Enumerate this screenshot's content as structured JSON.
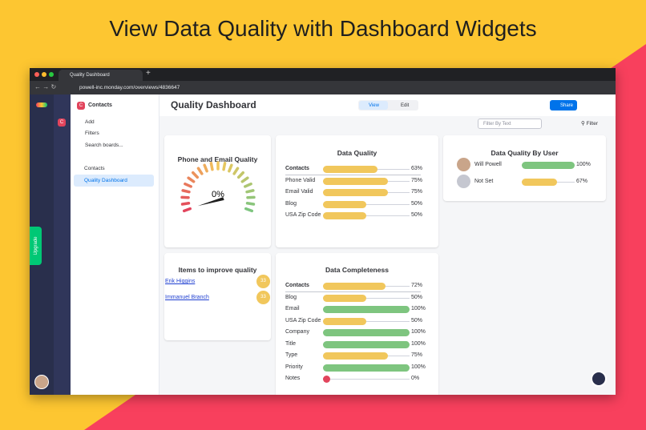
{
  "headline": "View Data Quality with Dashboard Widgets",
  "browser": {
    "tab": "Quality Dashboard",
    "url": "powell-inc.monday.com/overviews/4836647"
  },
  "sidebar": {
    "workspace": "Contacts",
    "workspace_icon": "C",
    "actions": [
      "Add",
      "Filters",
      "Search boards..."
    ],
    "items": [
      "Contacts",
      "Quality Dashboard"
    ],
    "upgrade": "Upgrade"
  },
  "header": {
    "title": "Quality Dashboard",
    "view": "View",
    "edit": "Edit",
    "share": "Share",
    "filter_placeholder": "Filter By Text",
    "filter": "Filter"
  },
  "widgets": {
    "gauge": {
      "title": "Phone and Email Quality",
      "value": 0,
      "value_label": "0%"
    },
    "data_quality": {
      "title": "Data Quality",
      "rows": [
        {
          "label": "Contacts",
          "value": 63,
          "value_label": "63%",
          "color": "#f1c75c"
        },
        {
          "label": "Phone Valid",
          "value": 75,
          "value_label": "75%",
          "color": "#f1c75c"
        },
        {
          "label": "Email Valid",
          "value": 75,
          "value_label": "75%",
          "color": "#f1c75c"
        },
        {
          "label": "Blog",
          "value": 50,
          "value_label": "50%",
          "color": "#f1c75c"
        },
        {
          "label": "USA Zip Code",
          "value": 50,
          "value_label": "50%",
          "color": "#f1c75c"
        }
      ]
    },
    "by_user": {
      "title": "Data Quality By User",
      "rows": [
        {
          "label": "Will Powell",
          "value": 100,
          "value_label": "100%",
          "color": "#7ec57f"
        },
        {
          "label": "Not Set",
          "value": 67,
          "value_label": "67%",
          "color": "#f1c75c"
        }
      ]
    },
    "items": {
      "title": "Items to improve quality",
      "rows": [
        {
          "label": "Erik Higgins",
          "value": 33
        },
        {
          "label": "Immanuel Branch",
          "value": 33
        }
      ]
    },
    "completeness": {
      "title": "Data Completeness",
      "rows": [
        {
          "label": "Contacts",
          "value": 72,
          "value_label": "72%",
          "color": "#f1c75c"
        },
        {
          "label": "Blog",
          "value": 50,
          "value_label": "50%",
          "color": "#f1c75c"
        },
        {
          "label": "Email",
          "value": 100,
          "value_label": "100%",
          "color": "#7ec57f"
        },
        {
          "label": "USA Zip Code",
          "value": 50,
          "value_label": "50%",
          "color": "#f1c75c"
        },
        {
          "label": "Company",
          "value": 100,
          "value_label": "100%",
          "color": "#7ec57f"
        },
        {
          "label": "Title",
          "value": 100,
          "value_label": "100%",
          "color": "#7ec57f"
        },
        {
          "label": "Type",
          "value": 75,
          "value_label": "75%",
          "color": "#f1c75c"
        },
        {
          "label": "Priority",
          "value": 100,
          "value_label": "100%",
          "color": "#7ec57f"
        },
        {
          "label": "Notes",
          "value": 0,
          "value_label": "0%",
          "color": "#e2445c"
        }
      ]
    }
  }
}
